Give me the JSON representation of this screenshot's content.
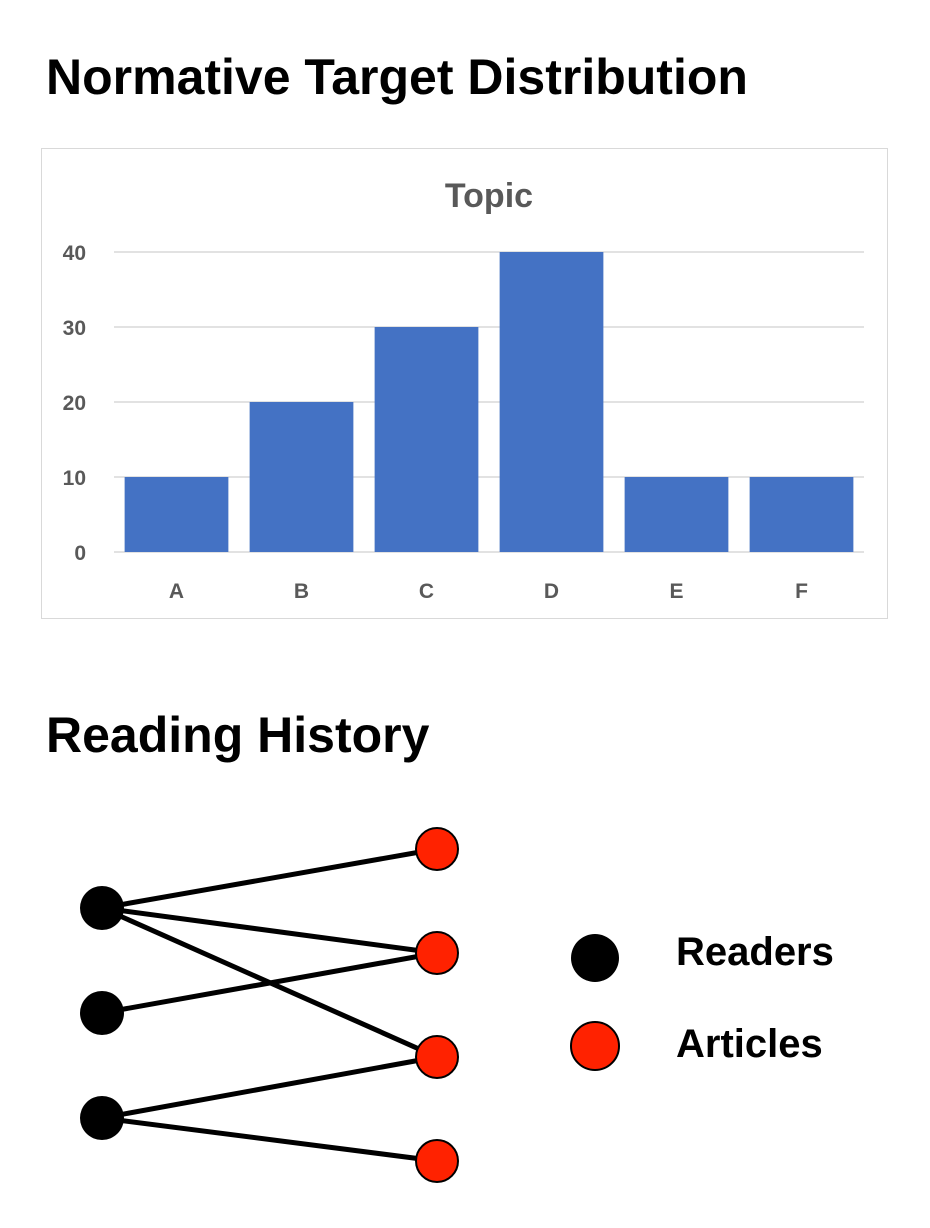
{
  "headings": {
    "distribution": "Normative Target Distribution",
    "history": "Reading History"
  },
  "chart_data": {
    "type": "bar",
    "title": "Topic",
    "categories": [
      "A",
      "B",
      "C",
      "D",
      "E",
      "F"
    ],
    "values": [
      10,
      20,
      30,
      40,
      10,
      10
    ],
    "yticks": [
      0,
      10,
      20,
      30,
      40
    ],
    "ylim": [
      0,
      40
    ],
    "xlabel": "",
    "ylabel": "",
    "grid": true,
    "legend": "none",
    "bar_color": "#4472c4",
    "title_color": "#595959",
    "tick_color": "#595959",
    "grid_color": "#d9d9d9"
  },
  "reading_history": {
    "readers": [
      "reader-1",
      "reader-2",
      "reader-3"
    ],
    "articles": [
      "article-1",
      "article-2",
      "article-3",
      "article-4"
    ],
    "edges": [
      [
        0,
        0
      ],
      [
        0,
        1
      ],
      [
        0,
        2
      ],
      [
        1,
        1
      ],
      [
        2,
        2
      ],
      [
        2,
        3
      ]
    ],
    "reader_color": "#000000",
    "article_color": "#ff2200"
  },
  "legend": {
    "readers": "Readers",
    "articles": "Articles"
  }
}
